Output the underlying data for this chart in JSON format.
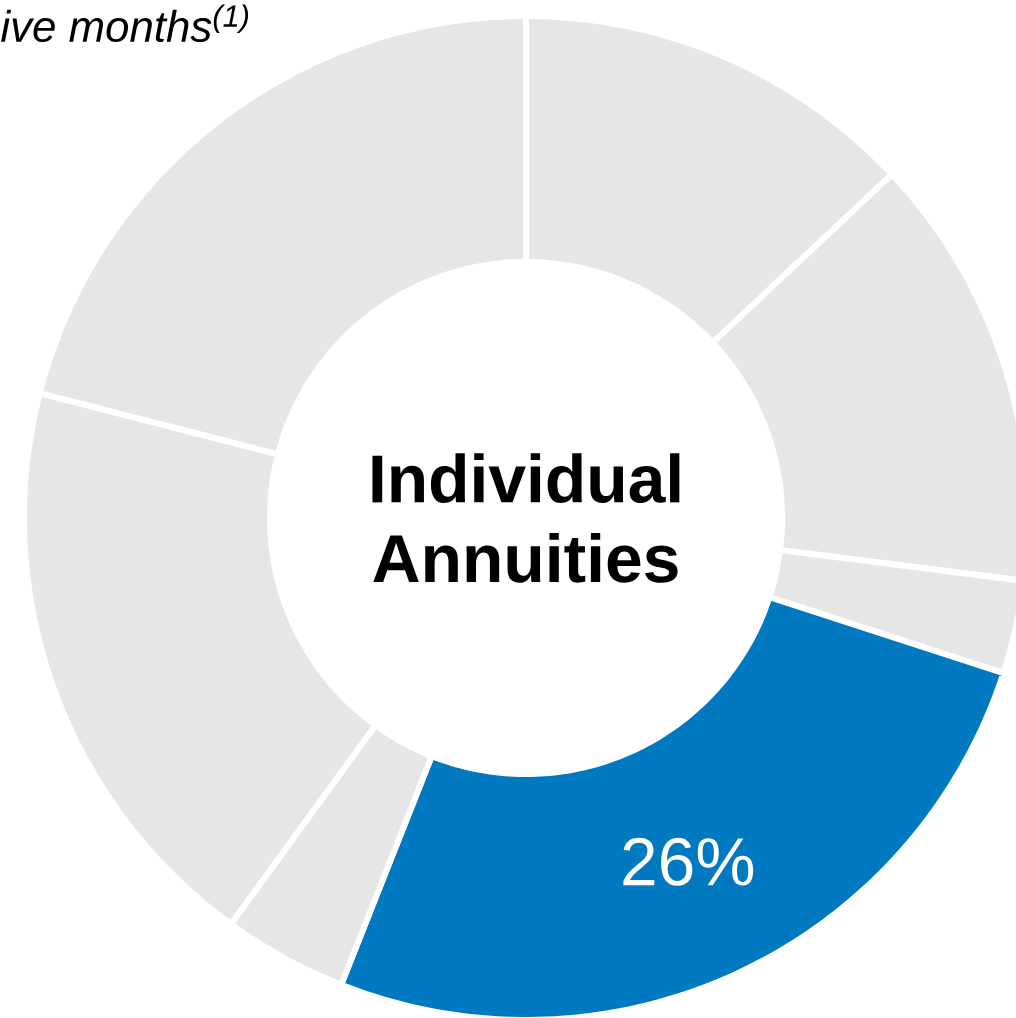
{
  "chart_data": {
    "type": "donut",
    "title": "Individual Annuities",
    "annotations": [
      "ive months$^{(1)}$"
    ],
    "categories": [
      null,
      null,
      null,
      null,
      null,
      null,
      null
    ],
    "values": [
      13,
      14,
      3,
      26,
      4,
      19,
      21
    ],
    "value_labels": [
      null,
      null,
      null,
      "26%",
      null,
      null,
      null
    ],
    "colors": [
      "#e6e6e6",
      "#e6e6e6",
      "#e6e6e6",
      "#0079c1",
      "#e6e6e6",
      "#e6e6e6",
      "#e6e6e6"
    ]
  }
}
